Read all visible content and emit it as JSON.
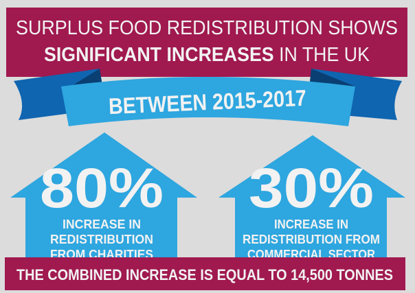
{
  "colors": {
    "background": "#dcdcdc",
    "magenta": "#a0194f",
    "ribbon_front": "#2ea6df",
    "ribbon_back": "#0f65b0",
    "house": "#2ea6df",
    "text": "#f2f2f2"
  },
  "header": {
    "line1": "SURPLUS FOOD REDISTRIBUTION SHOWS",
    "line2_bold": "SIGNIFICANT INCREASES",
    "line2_rest": " IN THE UK"
  },
  "ribbon": {
    "label": "BETWEEN 2015-2017"
  },
  "stats": [
    {
      "value": "80%",
      "lines": [
        "INCREASE IN",
        "REDISTRIBUTION",
        "FROM CHARITIES"
      ]
    },
    {
      "value": "30%",
      "lines": [
        "INCREASE IN",
        "REDISTRIBUTION FROM",
        "COMMERCIAL SECTOR"
      ]
    }
  ],
  "footer": {
    "label": "THE COMBINED INCREASE IS EQUAL TO 14,500 TONNES"
  }
}
